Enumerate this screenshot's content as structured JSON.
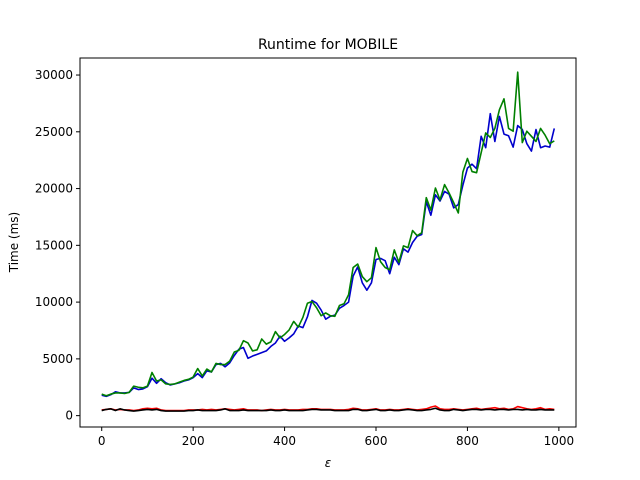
{
  "chart_data": {
    "type": "line",
    "title": "Runtime for MOBILE",
    "xlabel": "ε",
    "ylabel": "Time (ms)",
    "xlim": [
      -47.5,
      1037.5
    ],
    "ylim": [
      -1000,
      31500
    ],
    "xticks": [
      0,
      200,
      400,
      600,
      800,
      1000
    ],
    "yticks": [
      0,
      5000,
      10000,
      15000,
      20000,
      25000,
      30000
    ],
    "grid": false,
    "legend": "none",
    "x": [
      0,
      10,
      20,
      30,
      40,
      50,
      60,
      70,
      80,
      90,
      100,
      110,
      120,
      130,
      140,
      150,
      160,
      170,
      180,
      190,
      200,
      210,
      220,
      230,
      240,
      250,
      260,
      270,
      280,
      290,
      300,
      310,
      320,
      330,
      340,
      350,
      360,
      370,
      380,
      390,
      400,
      410,
      420,
      430,
      440,
      450,
      460,
      470,
      480,
      490,
      500,
      510,
      520,
      530,
      540,
      550,
      560,
      570,
      580,
      590,
      600,
      610,
      620,
      630,
      640,
      650,
      660,
      670,
      680,
      690,
      700,
      710,
      720,
      730,
      740,
      750,
      760,
      770,
      780,
      790,
      800,
      810,
      820,
      830,
      840,
      850,
      860,
      870,
      880,
      890,
      900,
      910,
      920,
      930,
      940,
      950,
      960,
      970,
      980,
      990
    ],
    "series": [
      {
        "color": "#0000cc",
        "values": [
          1800,
          1700,
          1850,
          2100,
          2000,
          2000,
          2050,
          2450,
          2300,
          2350,
          2550,
          3300,
          2850,
          3250,
          2900,
          2700,
          2800,
          2900,
          3050,
          3150,
          3350,
          3700,
          3350,
          3950,
          3850,
          4500,
          4600,
          4300,
          4650,
          5300,
          5850,
          6000,
          5050,
          5250,
          5400,
          5550,
          5700,
          6100,
          6400,
          7000,
          6550,
          6850,
          7200,
          7900,
          7750,
          8700,
          10150,
          9900,
          9300,
          8500,
          8750,
          8850,
          9450,
          9700,
          10000,
          12300,
          13100,
          11700,
          11050,
          11700,
          13750,
          13850,
          13650,
          12500,
          13950,
          13300,
          14700,
          14400,
          15250,
          15800,
          15950,
          18850,
          17650,
          19450,
          18900,
          19750,
          19500,
          18300,
          18600,
          20300,
          21800,
          22150,
          21750,
          24600,
          23600,
          26600,
          24150,
          26350,
          24800,
          24650,
          23650,
          25550,
          25200,
          23950,
          23300,
          25200,
          23600,
          23750,
          23650,
          25300
        ]
      },
      {
        "color": "#008000",
        "values": [
          1900,
          1750,
          1900,
          2000,
          2000,
          1950,
          2050,
          2600,
          2500,
          2450,
          2600,
          3800,
          3050,
          3150,
          2800,
          2750,
          2800,
          2950,
          3100,
          3200,
          3400,
          4150,
          3500,
          4100,
          3850,
          4600,
          4500,
          4500,
          4800,
          5600,
          5750,
          6600,
          6400,
          5700,
          5800,
          6750,
          6300,
          6500,
          7400,
          6850,
          7150,
          7550,
          8300,
          7800,
          8650,
          9900,
          10050,
          9500,
          8800,
          9050,
          8800,
          8750,
          9700,
          9850,
          10650,
          13050,
          13350,
          12250,
          11800,
          12150,
          14800,
          13550,
          13050,
          12850,
          14600,
          13500,
          14950,
          14800,
          16300,
          15850,
          16100,
          19200,
          18100,
          20050,
          19000,
          20350,
          19600,
          18750,
          17850,
          21450,
          22650,
          21500,
          21400,
          23150,
          24900,
          24500,
          25300,
          26950,
          27900,
          25300,
          25050,
          30250,
          24050,
          25050,
          24600,
          24150,
          25300,
          24700,
          23950,
          24200
        ]
      },
      {
        "color": "#ff0000",
        "values": [
          500,
          550,
          600,
          500,
          550,
          500,
          500,
          450,
          500,
          600,
          650,
          600,
          650,
          500,
          450,
          450,
          450,
          450,
          450,
          500,
          500,
          500,
          550,
          500,
          550,
          500,
          550,
          600,
          550,
          500,
          550,
          600,
          500,
          500,
          500,
          450,
          500,
          550,
          500,
          500,
          550,
          500,
          500,
          500,
          550,
          550,
          600,
          600,
          550,
          550,
          550,
          500,
          500,
          500,
          550,
          650,
          600,
          500,
          500,
          550,
          600,
          500,
          500,
          550,
          500,
          500,
          550,
          600,
          550,
          500,
          550,
          600,
          750,
          850,
          600,
          550,
          550,
          600,
          550,
          500,
          550,
          600,
          650,
          550,
          600,
          650,
          700,
          600,
          650,
          550,
          600,
          800,
          700,
          600,
          550,
          600,
          700,
          550,
          600,
          550
        ]
      },
      {
        "color": "#000000",
        "values": [
          450,
          550,
          600,
          450,
          600,
          500,
          450,
          400,
          450,
          500,
          550,
          500,
          550,
          450,
          400,
          400,
          400,
          400,
          400,
          450,
          450,
          500,
          450,
          450,
          450,
          450,
          500,
          600,
          450,
          450,
          450,
          500,
          450,
          450,
          450,
          450,
          450,
          500,
          450,
          450,
          500,
          450,
          450,
          450,
          450,
          500,
          550,
          550,
          500,
          500,
          500,
          450,
          450,
          450,
          450,
          550,
          550,
          450,
          450,
          500,
          550,
          450,
          450,
          500,
          450,
          450,
          500,
          550,
          500,
          450,
          450,
          500,
          550,
          650,
          500,
          450,
          450,
          550,
          500,
          450,
          500,
          550,
          550,
          500,
          550,
          550,
          500,
          550,
          550,
          500,
          550,
          550,
          500,
          550,
          500,
          500,
          550,
          500,
          500,
          500
        ]
      }
    ]
  }
}
